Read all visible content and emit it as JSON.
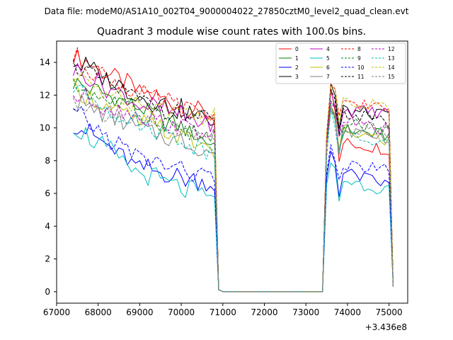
{
  "figure": {
    "suptitle": "Data file: modeM0/AS1A10_002T04_9000004022_27850cztM0_level2_quad_clean.evt"
  },
  "chart_data": {
    "type": "line",
    "title": "Quadrant 3 module wise count rates with 100.0s bins.",
    "xlabel": "",
    "ylabel": "",
    "x_offset_label": "+3.436e8",
    "xlim": [
      67000,
      75450
    ],
    "ylim": [
      -0.7,
      15.3
    ],
    "xticks": [
      67000,
      68000,
      69000,
      70000,
      71000,
      72000,
      73000,
      74000,
      75000
    ],
    "xtick_labels": [
      "67000",
      "68000",
      "69000",
      "70000",
      "71000",
      "72000",
      "73000",
      "74000",
      "75000"
    ],
    "yticks": [
      0,
      2,
      4,
      6,
      8,
      10,
      12,
      14
    ],
    "ytick_labels": [
      "0",
      "2",
      "4",
      "6",
      "8",
      "10",
      "12",
      "14"
    ],
    "grid": false,
    "legend_position": "top-right",
    "segment_a": {
      "x_start": 67400,
      "x_end": 70800,
      "step": 100
    },
    "segment_b": {
      "x_start": 73500,
      "x_end": 75000,
      "step": 100
    },
    "gap": {
      "x": [
        70900,
        71000,
        73400
      ],
      "y": [
        0.12,
        0.01,
        0.01
      ]
    },
    "tail": {
      "x": 75100
    },
    "series": [
      {
        "name": "0",
        "color": "#ff0000",
        "dash": "solid",
        "base_a": [
          14.5,
          12.3,
          10.7
        ],
        "base_b": [
          9.5,
          12.5,
          9.1,
          8.7
        ],
        "end": 0.3
      },
      {
        "name": "1",
        "color": "#008000",
        "dash": "solid",
        "base_a": [
          12.8,
          11.3,
          9.0
        ],
        "base_b": [
          9.0,
          11.4,
          9.9,
          9.5
        ],
        "end": 0.3
      },
      {
        "name": "2",
        "color": "#0000ff",
        "dash": "solid",
        "base_a": [
          10.4,
          7.6,
          6.5
        ],
        "base_b": [
          6.9,
          8.6,
          7.3,
          6.5
        ],
        "end": 0.3
      },
      {
        "name": "3",
        "color": "#000000",
        "dash": "solid",
        "base_a": [
          14.1,
          12.0,
          10.4
        ],
        "base_b": [
          9.2,
          12.7,
          11.1,
          10.7
        ],
        "end": 0.3
      },
      {
        "name": "4",
        "color": "#bf00bf",
        "dash": "solid",
        "base_a": [
          13.6,
          11.5,
          10.2
        ],
        "base_b": [
          9.4,
          12.2,
          11.1,
          10.9
        ],
        "end": 0.3
      },
      {
        "name": "5",
        "color": "#00bfbf",
        "dash": "solid",
        "base_a": [
          10.2,
          7.3,
          5.6
        ],
        "base_b": [
          6.5,
          7.9,
          6.8,
          6.2
        ],
        "end": 0.3
      },
      {
        "name": "6",
        "color": "#bfbf00",
        "dash": "solid",
        "base_a": [
          12.3,
          10.4,
          8.7
        ],
        "base_b": [
          8.9,
          11.3,
          9.8,
          9.2
        ],
        "end": 0.3
      },
      {
        "name": "7",
        "color": "#808080",
        "dash": "solid",
        "base_a": [
          11.6,
          10.0,
          8.5
        ],
        "base_b": [
          8.8,
          11.0,
          9.9,
          9.4
        ],
        "end": 0.3
      },
      {
        "name": "8",
        "color": "#ff0000",
        "dash": "dashed",
        "base_a": [
          14.3,
          12.1,
          10.6
        ],
        "base_b": [
          9.6,
          12.6,
          11.7,
          11.1
        ],
        "end": 0.3
      },
      {
        "name": "9",
        "color": "#008000",
        "dash": "dashed",
        "base_a": [
          12.6,
          11.0,
          9.2
        ],
        "base_b": [
          9.1,
          11.7,
          10.3,
          9.9
        ],
        "end": 0.3
      },
      {
        "name": "10",
        "color": "#0000ff",
        "dash": "dashed",
        "base_a": [
          10.9,
          8.2,
          6.9
        ],
        "base_b": [
          7.2,
          8.9,
          7.7,
          7.5
        ],
        "end": 0.3
      },
      {
        "name": "11",
        "color": "#000000",
        "dash": "dashed",
        "base_a": [
          13.9,
          11.7,
          10.3
        ],
        "base_b": [
          9.3,
          12.4,
          11.0,
          10.2
        ],
        "end": 0.3
      },
      {
        "name": "12",
        "color": "#bf00bf",
        "dash": "dashed",
        "base_a": [
          12.0,
          10.8,
          9.6
        ],
        "base_b": [
          9.3,
          11.6,
          10.5,
          9.8
        ],
        "end": 0.3
      },
      {
        "name": "13",
        "color": "#00bfbf",
        "dash": "dashed",
        "base_a": [
          12.5,
          10.3,
          8.5
        ],
        "base_b": [
          8.2,
          11.2,
          9.5,
          9.0
        ],
        "end": 0.3
      },
      {
        "name": "14",
        "color": "#bfbf00",
        "dash": "dashed",
        "base_a": [
          13.0,
          11.6,
          10.7
        ],
        "base_b": [
          9.6,
          12.5,
          11.8,
          11.2
        ],
        "end": 0.3
      },
      {
        "name": "15",
        "color": "#808080",
        "dash": "dashed",
        "base_a": [
          11.7,
          10.2,
          9.3
        ],
        "base_b": [
          8.9,
          11.3,
          10.1,
          9.7
        ],
        "end": 0.3
      }
    ]
  }
}
